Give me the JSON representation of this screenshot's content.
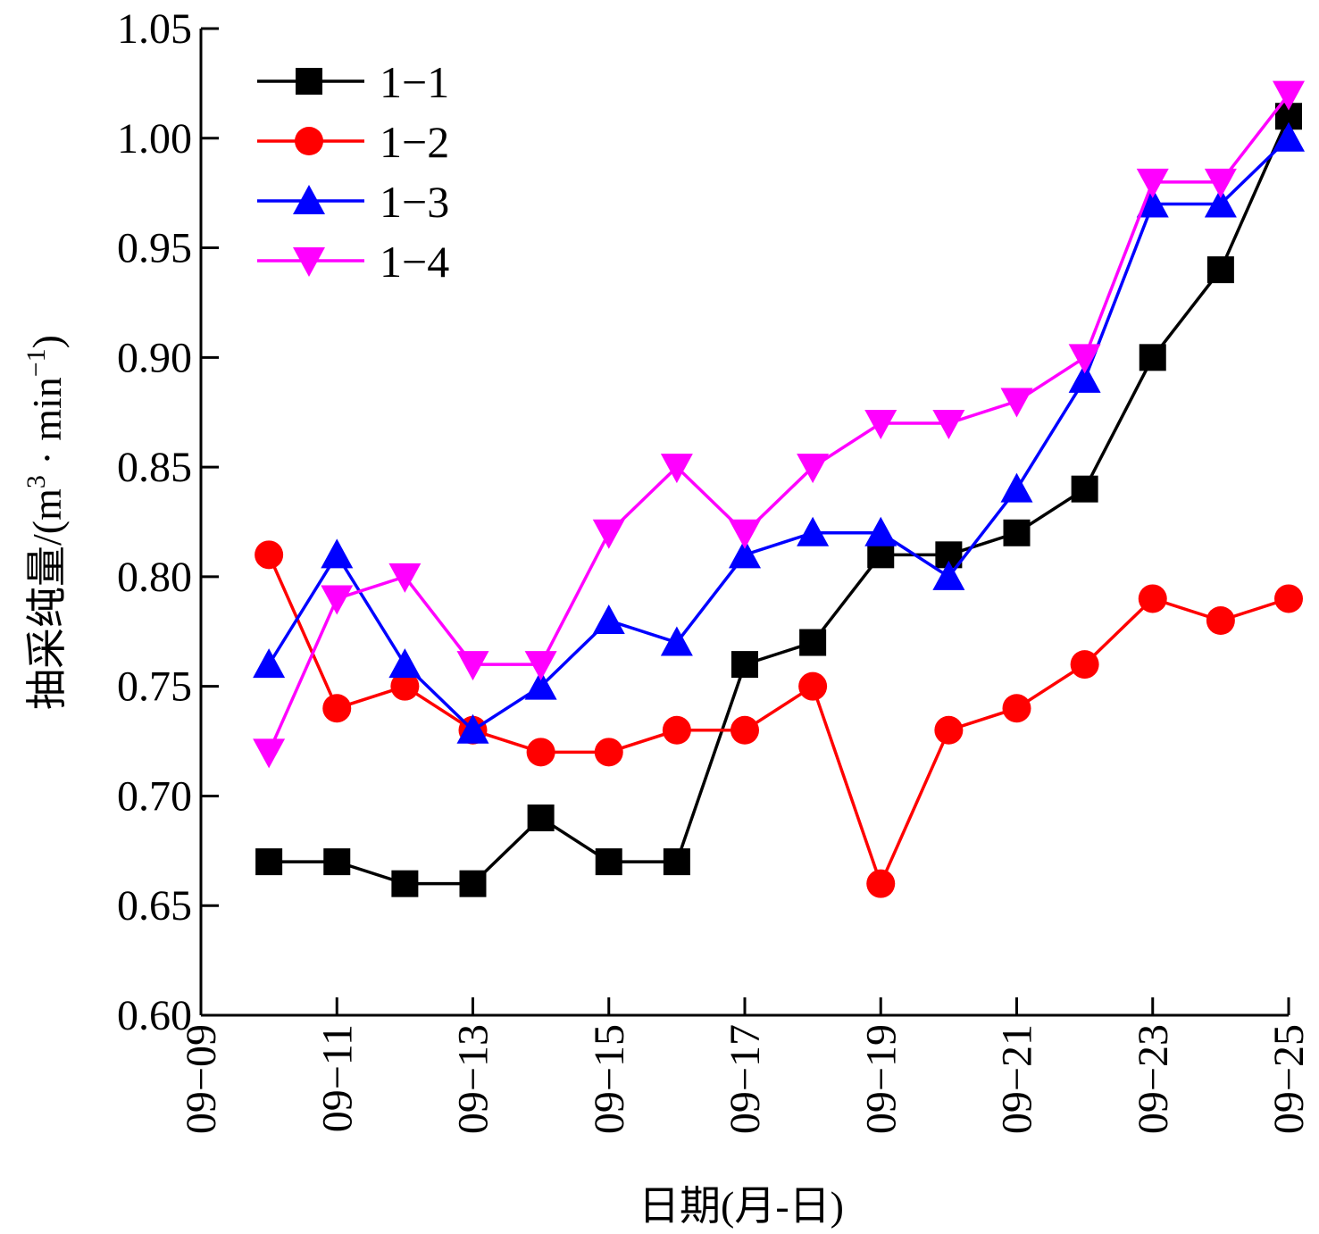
{
  "chart_data": {
    "type": "line",
    "title": "",
    "xlabel": "日期(月-日)",
    "ylabel": "抽采纯量/(m³·min⁻¹)",
    "ylabel_parts": {
      "main": "抽采纯量/(m",
      "sup1": "3",
      "mid": " · min",
      "sup2": "−1",
      "end": ")"
    },
    "ylim": [
      0.6,
      1.05
    ],
    "yticks": [
      "0.60",
      "0.65",
      "0.70",
      "0.75",
      "0.80",
      "0.85",
      "0.90",
      "0.95",
      "1.00",
      "1.05"
    ],
    "xticks": [
      "09−09",
      "09−11",
      "09−13",
      "09−15",
      "09−17",
      "09−19",
      "09−21",
      "09−23",
      "09−25"
    ],
    "x_day_range": [
      9,
      25
    ],
    "x": [
      10,
      11,
      12,
      13,
      14,
      15,
      16,
      17,
      18,
      19,
      20,
      21,
      22,
      23,
      24,
      25
    ],
    "legend_position": "top-left",
    "series": [
      {
        "name": "1−1",
        "color": "#000000",
        "marker": "square",
        "values": [
          0.67,
          0.67,
          0.66,
          0.66,
          0.69,
          0.67,
          0.67,
          0.76,
          0.77,
          0.81,
          0.81,
          0.82,
          0.84,
          0.9,
          0.94,
          1.01
        ]
      },
      {
        "name": "1−2",
        "color": "#ff0000",
        "marker": "circle",
        "values": [
          0.81,
          0.74,
          0.75,
          0.73,
          0.72,
          0.72,
          0.73,
          0.73,
          0.75,
          0.66,
          0.73,
          0.74,
          0.76,
          0.79,
          0.78,
          0.79
        ]
      },
      {
        "name": "1−3",
        "color": "#0000ff",
        "marker": "triangle-up",
        "values": [
          0.76,
          0.81,
          0.76,
          0.73,
          0.75,
          0.78,
          0.77,
          0.81,
          0.82,
          0.82,
          0.8,
          0.84,
          0.89,
          0.97,
          0.97,
          1.0
        ]
      },
      {
        "name": "1−4",
        "color": "#ff00ff",
        "marker": "triangle-down",
        "values": [
          0.72,
          0.79,
          0.8,
          0.76,
          0.76,
          0.82,
          0.85,
          0.82,
          0.85,
          0.87,
          0.87,
          0.88,
          0.9,
          0.98,
          0.98,
          1.02
        ]
      }
    ]
  }
}
